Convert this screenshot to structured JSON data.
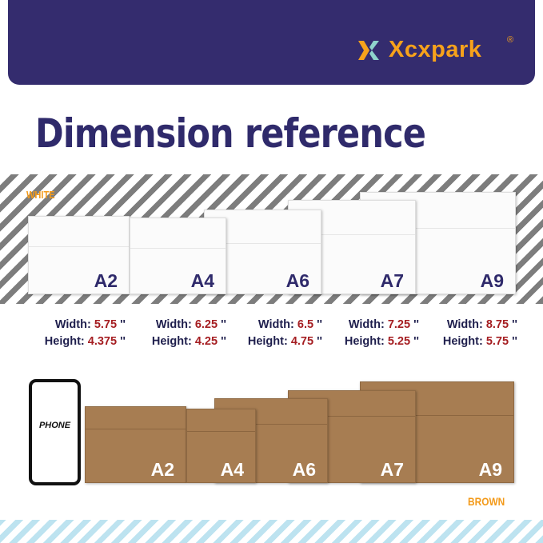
{
  "brand": {
    "name": "Xcxpark",
    "registered": "®",
    "icon": "x-logo-icon",
    "colors": {
      "banner": "#342c6e",
      "accent": "#f7a21b",
      "teal": "#8fd3cc"
    }
  },
  "title": "Dimension reference",
  "white_label": "WHITE",
  "brown_label": "BROWN",
  "phone_label": "PHONE",
  "white_envelopes": [
    {
      "size": "A2"
    },
    {
      "size": "A4"
    },
    {
      "size": "A6"
    },
    {
      "size": "A7"
    },
    {
      "size": "A9"
    }
  ],
  "brown_envelopes": [
    {
      "size": "A2"
    },
    {
      "size": "A4"
    },
    {
      "size": "A6"
    },
    {
      "size": "A7"
    },
    {
      "size": "A9"
    }
  ],
  "dimensions": [
    {
      "width_label": "Width:",
      "width": "5.75",
      "height_label": "Height:",
      "height": "4.375",
      "unit": "''"
    },
    {
      "width_label": "Width:",
      "width": "6.25",
      "height_label": "Height:",
      "height": "4.25",
      "unit": "''"
    },
    {
      "width_label": "Width:",
      "width": "6.5",
      "height_label": "Height:",
      "height": "4.75",
      "unit": "''"
    },
    {
      "width_label": "Width:",
      "width": "7.25",
      "height_label": "Height:",
      "height": "5.25",
      "unit": "''"
    },
    {
      "width_label": "Width:",
      "width": "8.75",
      "height_label": "Height:",
      "height": "5.75",
      "unit": "''"
    }
  ]
}
